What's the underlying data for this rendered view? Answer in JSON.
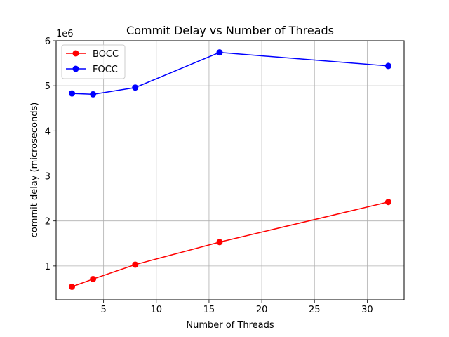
{
  "chart_data": {
    "type": "line",
    "title": "Commit Delay vs Number of Threads",
    "xlabel": "Number of Threads",
    "ylabel": "commit delay (microseconds)",
    "y_offset_label": "1e6",
    "xlim": [
      0.5,
      33.5
    ],
    "ylim": [
      250000,
      6000000
    ],
    "xticks": [
      5,
      10,
      15,
      20,
      25,
      30
    ],
    "yticks": [
      1000000,
      2000000,
      3000000,
      4000000,
      5000000,
      6000000
    ],
    "ytick_labels": [
      "1",
      "2",
      "3",
      "4",
      "5",
      "6"
    ],
    "grid": true,
    "legend_position": "top-left",
    "x": [
      2,
      4,
      8,
      16,
      32
    ],
    "series": [
      {
        "name": "BOCC",
        "color": "#ff0000",
        "values": [
          540000,
          710000,
          1030000,
          1530000,
          2420000
        ]
      },
      {
        "name": "FOCC",
        "color": "#0000ff",
        "values": [
          4830000,
          4810000,
          4960000,
          5740000,
          5440000
        ]
      }
    ]
  }
}
